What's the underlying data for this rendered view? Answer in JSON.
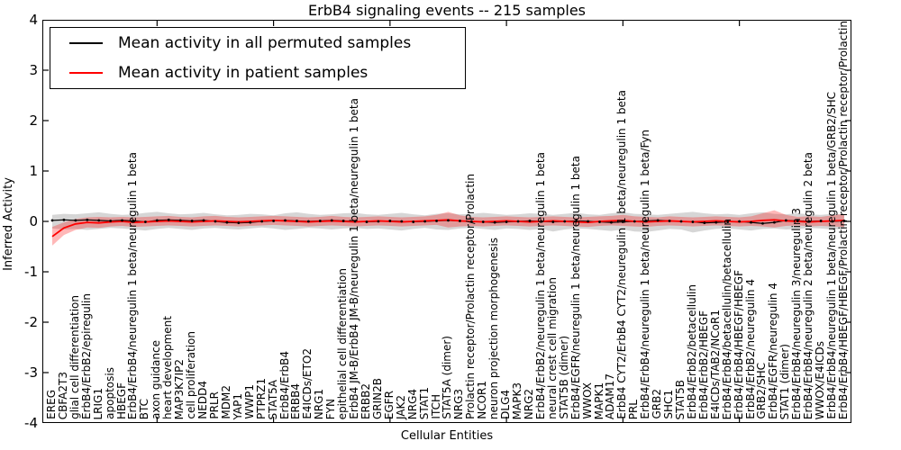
{
  "figure": {
    "title": "ErbB4 signaling events -- 215 samples",
    "xlabel": "Cellular Entities",
    "ylabel": "Inferred Activity",
    "yticks": [
      4,
      3,
      2,
      1,
      0,
      -1,
      -2,
      -3,
      -4
    ],
    "legend": [
      {
        "label": "Mean activity in all permuted samples",
        "color": "#000000"
      },
      {
        "label": "Mean activity in patient samples",
        "color": "#ff0000"
      }
    ],
    "colors": {
      "permuted_line": "#000000",
      "permuted_band": "rgba(0,0,0,0.16)",
      "patient_line": "#ff0000",
      "patient_band": "rgba(255,0,0,0.28)",
      "axis": "#000000",
      "background": "#ffffff"
    }
  },
  "chart_data": {
    "type": "line",
    "title": "ErbB4 signaling events -- 215 samples",
    "xlabel": "Cellular Entities",
    "ylabel": "Inferred Activity",
    "ylim": [
      -4,
      4
    ],
    "grid": false,
    "legend_position": "upper left",
    "xtick_rotation": 90,
    "xtick_indices_marked": [
      9,
      19,
      29,
      39,
      49,
      59
    ],
    "categories": [
      "EREG",
      "CBFA2T3",
      "glial cell differentiation",
      "ErbB4/ErbB2/epiregulin",
      "LRIG1",
      "apoptosis",
      "HBEGF",
      "ErbB4/ErbB4/neuregulin 1 beta/neuregulin 1 beta",
      "BTC",
      "axon guidance",
      "heart development",
      "MAP3K7IP2",
      "cell proliferation",
      "NEDD4",
      "PRLR",
      "MDM2",
      "YAP1",
      "WWP1",
      "PTPRZ1",
      "STAT5A",
      "ErbB4/ErbB4",
      "ERBB4",
      "E4ICDs/ETO2",
      "NRG1",
      "FYN",
      "epithelial cell differentiation",
      "ErbB4 JM-B/ErbB4 JM-B/neuregulin 1 beta/neuregulin 1 beta",
      "ERBB2",
      "GRIN2B",
      "EGFR",
      "JAK2",
      "NRG4",
      "STAT1",
      "ITCH",
      "STAT5A (dimer)",
      "NRG3",
      "Prolactin receptor/Prolactin receptor/Prolactin",
      "NCOR1",
      "neuron projection morphogenesis",
      "DLG4",
      "MAPK3",
      "NRG2",
      "ErbB4/ErbB2/neuregulin 1 beta/neuregulin 1 beta",
      "neural crest cell migration",
      "STAT5B (dimer)",
      "ErbB4/EGFR/neuregulin 1 beta/neuregulin 1 beta",
      "WWOX",
      "MAPK1",
      "ADAM17",
      "ErbB4 CYT2/ErbB4 CYT2/neuregulin 1 beta/neuregulin 1 beta",
      "PRL",
      "ErbB4/ErbB4/neuregulin 1 beta/neuregulin 1 beta/Fyn",
      "GRB2",
      "SHC1",
      "STAT5B",
      "ErbB4/ErbB2/betacellulin",
      "ErbB4/ErbB2/HBEGF",
      "E4ICDs/TAB2/NCoR1",
      "ErbB4/ErbB4/betacellulin/betacellulin",
      "ErbB4/ErbB4/HBEGF/HBEGF",
      "ErbB4/ErbB2/neuregulin 4",
      "GRB2/SHC",
      "ErbB4/EGFR/neuregulin 4",
      "STAT1 (dimer)",
      "ErbB4/ErbB4/neuregulin 3/neuregulin 3",
      "ErbB4/ErbB4/neuregulin 2 beta/neuregulin 2 beta",
      "WWOX/E4ICDs",
      "ErbB4/ErbB4/neuregulin 1 beta/neuregulin 1 beta/GRB2/SHC",
      "ErbB4/ErbB4/HBEGF/HBEGF/Prolactin receptor/Prolactin receptor/Prolactin"
    ],
    "series": [
      {
        "name": "Mean activity in all permuted samples",
        "color": "#000000",
        "marker": "dot",
        "values": [
          0.02,
          0.03,
          0.02,
          0.03,
          0.02,
          0.01,
          0.02,
          0.01,
          -0.01,
          0.02,
          0.03,
          0.02,
          0.01,
          0.02,
          0.0,
          -0.02,
          -0.03,
          -0.02,
          0.0,
          0.01,
          0.02,
          0.01,
          0.0,
          0.01,
          0.02,
          0.01,
          0.0,
          -0.01,
          0.0,
          0.01,
          0.0,
          -0.01,
          0.0,
          0.01,
          0.02,
          0.01,
          0.0,
          -0.01,
          -0.02,
          -0.01,
          0.0,
          0.01,
          0.0,
          -0.01,
          0.0,
          0.01,
          0.0,
          -0.01,
          -0.02,
          -0.01,
          0.0,
          0.01,
          0.02,
          0.01,
          0.0,
          -0.01,
          -0.03,
          -0.02,
          -0.01,
          0.0,
          -0.02,
          -0.04,
          -0.02,
          0.02,
          0.01,
          0.0,
          0.01,
          0.0,
          0.01
        ],
        "band_upper": [
          0.13,
          0.15,
          0.14,
          0.16,
          0.18,
          0.15,
          0.13,
          0.14,
          0.17,
          0.19,
          0.16,
          0.14,
          0.15,
          0.17,
          0.14,
          0.12,
          0.13,
          0.15,
          0.14,
          0.12,
          0.16,
          0.18,
          0.15,
          0.13,
          0.14,
          0.16,
          0.17,
          0.14,
          0.13,
          0.15,
          0.17,
          0.14,
          0.12,
          0.15,
          0.16,
          0.14,
          0.15,
          0.17,
          0.15,
          0.13,
          0.14,
          0.16,
          0.15,
          0.13,
          0.15,
          0.17,
          0.14,
          0.13,
          0.16,
          0.18,
          0.15,
          0.14,
          0.13,
          0.15,
          0.17,
          0.19,
          0.16,
          0.14,
          0.15,
          0.13,
          0.16,
          0.18,
          0.15,
          0.14,
          0.16,
          0.14,
          0.13,
          0.15,
          0.14
        ],
        "band_lower": [
          -0.14,
          -0.16,
          -0.15,
          -0.17,
          -0.15,
          -0.13,
          -0.14,
          -0.16,
          -0.18,
          -0.15,
          -0.13,
          -0.15,
          -0.17,
          -0.14,
          -0.13,
          -0.15,
          -0.16,
          -0.14,
          -0.12,
          -0.14,
          -0.17,
          -0.15,
          -0.13,
          -0.14,
          -0.16,
          -0.14,
          -0.13,
          -0.15,
          -0.14,
          -0.16,
          -0.18,
          -0.15,
          -0.13,
          -0.16,
          -0.17,
          -0.14,
          -0.13,
          -0.15,
          -0.17,
          -0.14,
          -0.15,
          -0.17,
          -0.15,
          -0.2,
          -0.16,
          -0.14,
          -0.15,
          -0.17,
          -0.19,
          -0.16,
          -0.2,
          -0.21,
          -0.18,
          -0.15,
          -0.16,
          -0.22,
          -0.18,
          -0.15,
          -0.14,
          -0.16,
          -0.18,
          -0.15,
          -0.14,
          -0.16,
          -0.15,
          -0.13,
          -0.14,
          -0.16,
          -0.15
        ]
      },
      {
        "name": "Mean activity in patient samples",
        "color": "#ff0000",
        "marker": "none",
        "values": [
          -0.3,
          -0.13,
          -0.05,
          -0.02,
          -0.03,
          -0.01,
          0.0,
          -0.02,
          -0.01,
          0.0,
          0.01,
          0.0,
          -0.01,
          0.0,
          0.01,
          0.0,
          -0.01,
          0.0,
          0.01,
          0.02,
          0.01,
          0.0,
          -0.01,
          0.0,
          0.01,
          0.0,
          -0.01,
          0.0,
          0.01,
          0.0,
          -0.01,
          0.0,
          0.01,
          0.02,
          0.03,
          0.01,
          0.0,
          -0.01,
          0.0,
          0.01,
          0.0,
          -0.01,
          0.0,
          0.01,
          0.0,
          -0.01,
          -0.02,
          0.0,
          0.01,
          0.02,
          0.0,
          -0.01,
          0.0,
          0.01,
          0.0,
          -0.01,
          0.0,
          0.01,
          0.0,
          -0.01,
          0.0,
          0.02,
          0.03,
          0.01,
          0.0,
          -0.01,
          0.0,
          0.01,
          0.02
        ],
        "band_upper": [
          -0.11,
          -0.02,
          0.05,
          0.08,
          0.09,
          0.08,
          0.09,
          0.08,
          0.09,
          0.1,
          0.11,
          0.09,
          0.08,
          0.1,
          0.11,
          0.09,
          0.08,
          0.09,
          0.1,
          0.11,
          0.1,
          0.09,
          0.08,
          0.09,
          0.11,
          0.09,
          0.08,
          0.09,
          0.1,
          0.09,
          0.08,
          0.09,
          0.1,
          0.13,
          0.19,
          0.12,
          0.09,
          0.08,
          0.09,
          0.1,
          0.09,
          0.08,
          0.09,
          0.1,
          0.09,
          0.08,
          0.09,
          0.1,
          0.11,
          0.13,
          0.1,
          0.09,
          0.08,
          0.1,
          0.09,
          0.08,
          0.09,
          0.1,
          0.09,
          0.08,
          0.1,
          0.16,
          0.22,
          0.13,
          0.09,
          0.1,
          0.09,
          0.12,
          0.15
        ],
        "band_lower": [
          -0.48,
          -0.27,
          -0.17,
          -0.12,
          -0.13,
          -0.1,
          -0.09,
          -0.11,
          -0.1,
          -0.09,
          -0.08,
          -0.09,
          -0.1,
          -0.09,
          -0.08,
          -0.09,
          -0.1,
          -0.09,
          -0.08,
          -0.07,
          -0.08,
          -0.09,
          -0.1,
          -0.09,
          -0.08,
          -0.09,
          -0.1,
          -0.09,
          -0.08,
          -0.09,
          -0.1,
          -0.09,
          -0.08,
          -0.07,
          -0.12,
          -0.1,
          -0.09,
          -0.1,
          -0.09,
          -0.08,
          -0.09,
          -0.1,
          -0.09,
          -0.08,
          -0.09,
          -0.1,
          -0.11,
          -0.09,
          -0.08,
          -0.09,
          -0.1,
          -0.11,
          -0.09,
          -0.08,
          -0.09,
          -0.1,
          -0.09,
          -0.08,
          -0.09,
          -0.1,
          -0.09,
          -0.1,
          -0.12,
          -0.09,
          -0.08,
          -0.1,
          -0.09,
          -0.1,
          -0.11
        ]
      }
    ]
  }
}
